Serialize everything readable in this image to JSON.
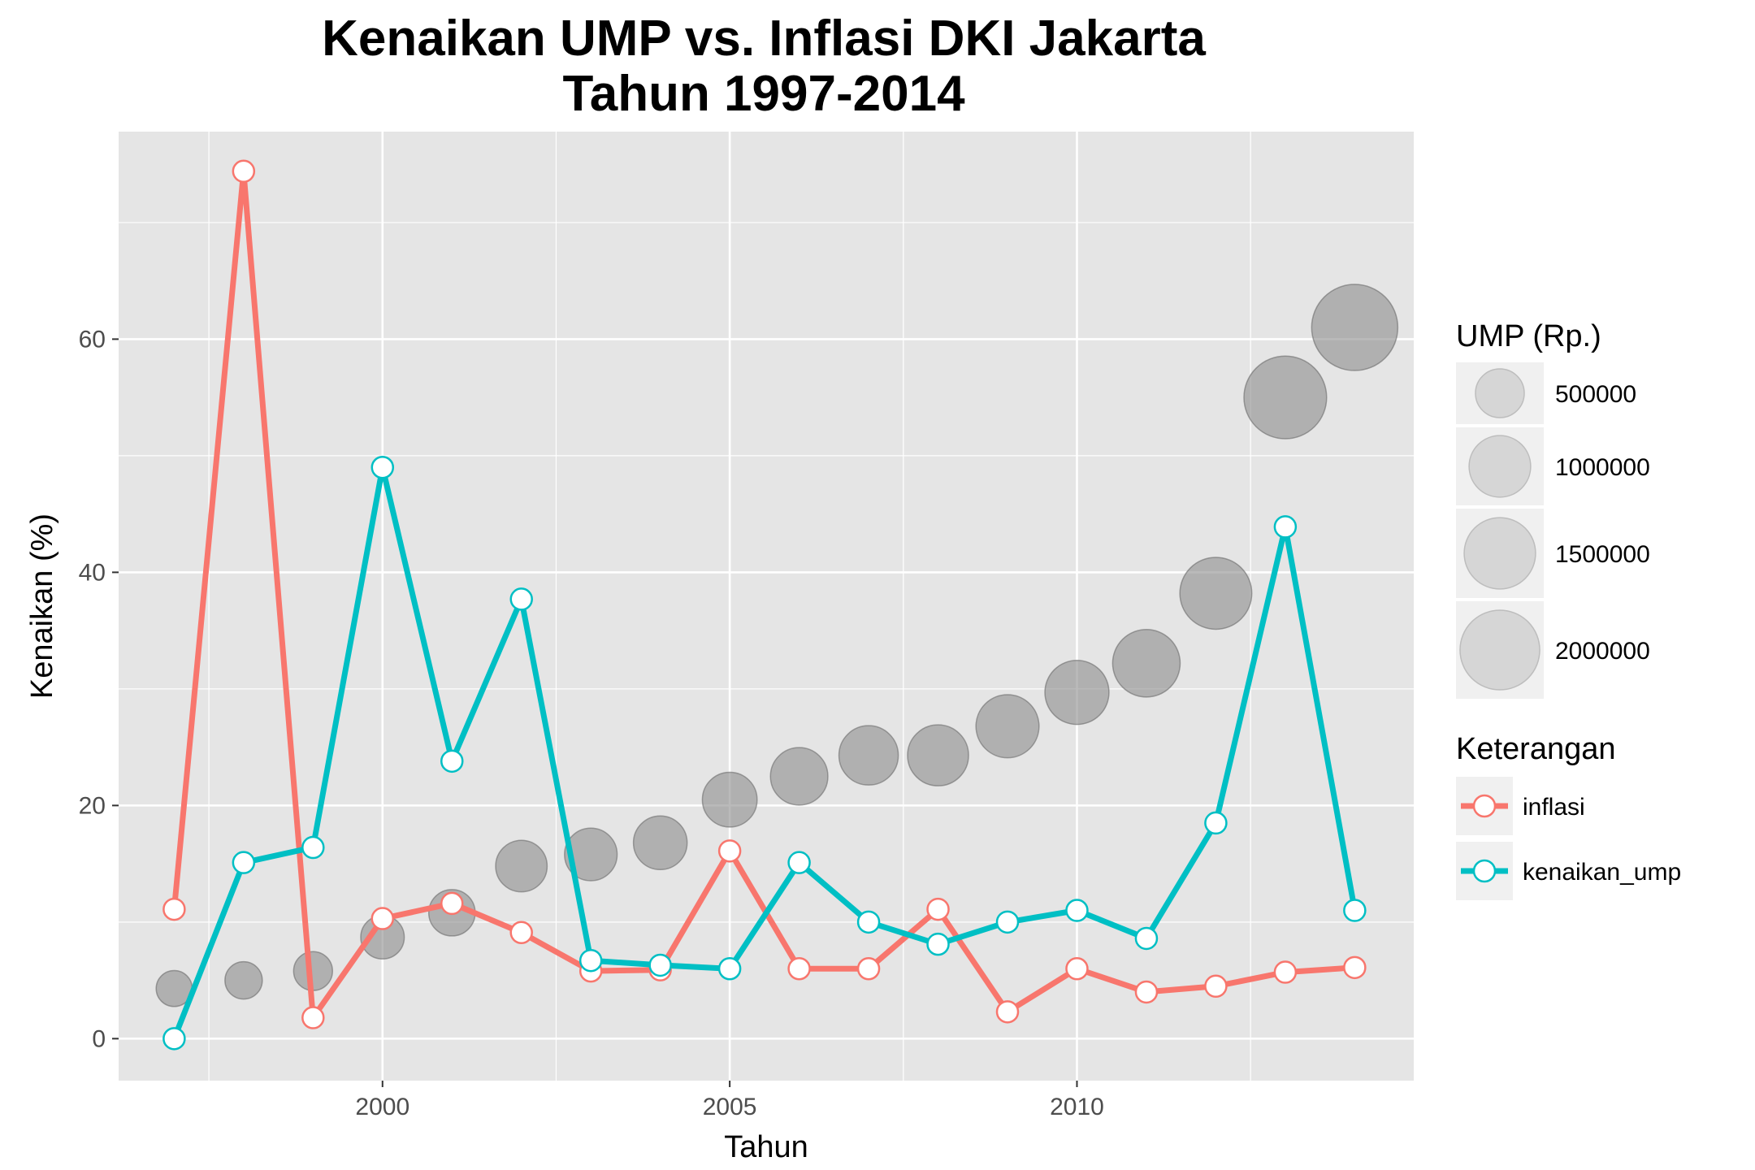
{
  "chart_data": {
    "type": "line",
    "title": "Kenaikan UMP vs. Inflasi DKI Jakarta",
    "subtitle": "Tahun 1997-2014",
    "xlabel": "Tahun",
    "ylabel": "Kenaikan (%)",
    "xlim": [
      1996.2,
      2014.85
    ],
    "ylim": [
      -3.6,
      77.8
    ],
    "x_ticks": [
      2000,
      2005,
      2010
    ],
    "y_ticks": [
      0,
      20,
      40,
      60
    ],
    "grid": true,
    "x": [
      1997,
      1998,
      1999,
      2000,
      2001,
      2002,
      2003,
      2004,
      2005,
      2006,
      2007,
      2008,
      2009,
      2010,
      2011,
      2012,
      2013,
      2014
    ],
    "series": [
      {
        "name": "inflasi",
        "color": "#F8766D",
        "values": [
          11.1,
          74.4,
          1.8,
          10.3,
          11.6,
          9.1,
          5.8,
          5.9,
          16.1,
          6.0,
          6.0,
          11.1,
          2.3,
          6.0,
          4.0,
          4.5,
          5.7,
          6.1
        ]
      },
      {
        "name": "kenaikan_ump",
        "color": "#00BFC4",
        "values": [
          0.0,
          15.1,
          16.4,
          49.0,
          23.8,
          37.7,
          6.7,
          6.3,
          6.0,
          15.1,
          10.0,
          8.1,
          10.0,
          11.0,
          8.6,
          18.5,
          43.9,
          11.0
        ]
      }
    ],
    "bubble_series": {
      "name": "UMP (Rp.)",
      "y_values": [
        4.3,
        5.0,
        5.8,
        8.7,
        10.8,
        14.8,
        15.8,
        16.8,
        20.5,
        22.5,
        24.3,
        24.3,
        26.8,
        29.7,
        32.2,
        38.2,
        55.0,
        61.0
      ],
      "ump_values": [
        172500,
        198500,
        231000,
        344250,
        426250,
        591266,
        631554,
        671550,
        711843,
        819100,
        900560,
        972605,
        1069865,
        1118009,
        1290000,
        1529150,
        2200000,
        2441000
      ]
    },
    "legend": {
      "placement": "right",
      "size_title": "UMP (Rp.)",
      "size_entries": [
        "500000",
        "1000000",
        "1500000",
        "2000000"
      ],
      "size_breaks": [
        500000,
        1000000,
        1500000,
        2000000
      ],
      "color_title": "Keterangan",
      "color_entries": [
        "inflasi",
        "kenaikan_ump"
      ]
    }
  }
}
